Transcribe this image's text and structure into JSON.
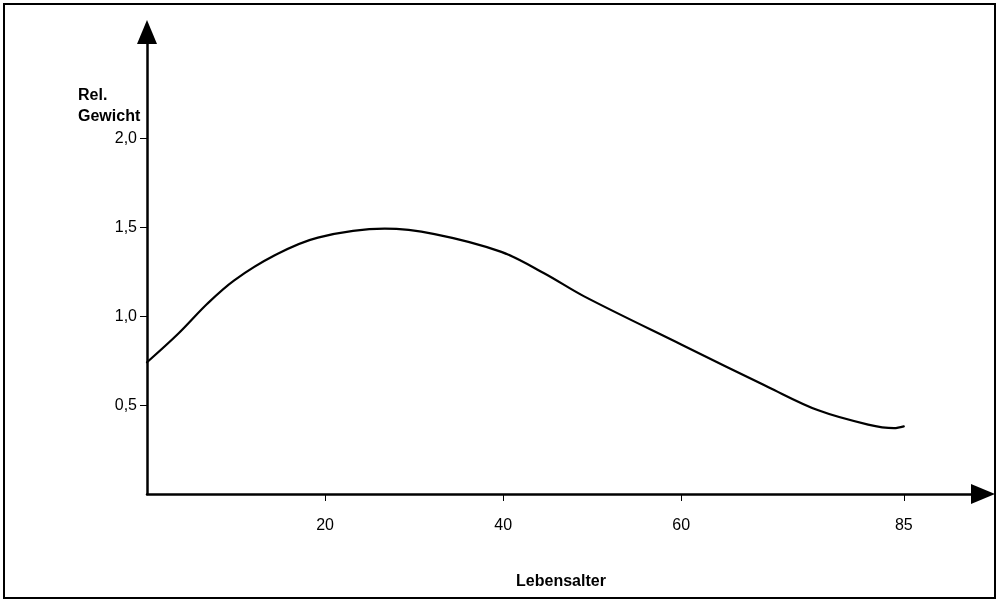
{
  "chart_data": {
    "type": "line",
    "xlabel": "Lebensalter",
    "ylabel": "Rel. Gewicht",
    "series": [
      {
        "color": "#000000",
        "x": [
          0,
          3.5,
          6.8,
          9.8,
          14.3,
          19.2,
          26.7,
          32.3,
          39.8,
          44.6,
          49.1,
          60,
          69.8,
          75.4,
          81,
          83.9,
          85
        ],
        "values": [
          0.74,
          0.9,
          1.07,
          1.2,
          1.34,
          1.44,
          1.49,
          1.46,
          1.36,
          1.24,
          1.11,
          0.84,
          0.6,
          0.47,
          0.39,
          0.37,
          0.38
        ]
      }
    ],
    "xlim": [
      0,
      93
    ],
    "ylim": [
      0,
      2.55
    ],
    "xticks": [
      20,
      40,
      60,
      85
    ],
    "yticks": [
      {
        "value": 0.5,
        "label": "0,5"
      },
      {
        "value": 1,
        "label": "1,0"
      },
      {
        "value": 1.5,
        "label": "1,5"
      },
      {
        "value": 2,
        "label": "2,0"
      }
    ],
    "grid": false,
    "marker": "none",
    "line_style": "solid"
  }
}
